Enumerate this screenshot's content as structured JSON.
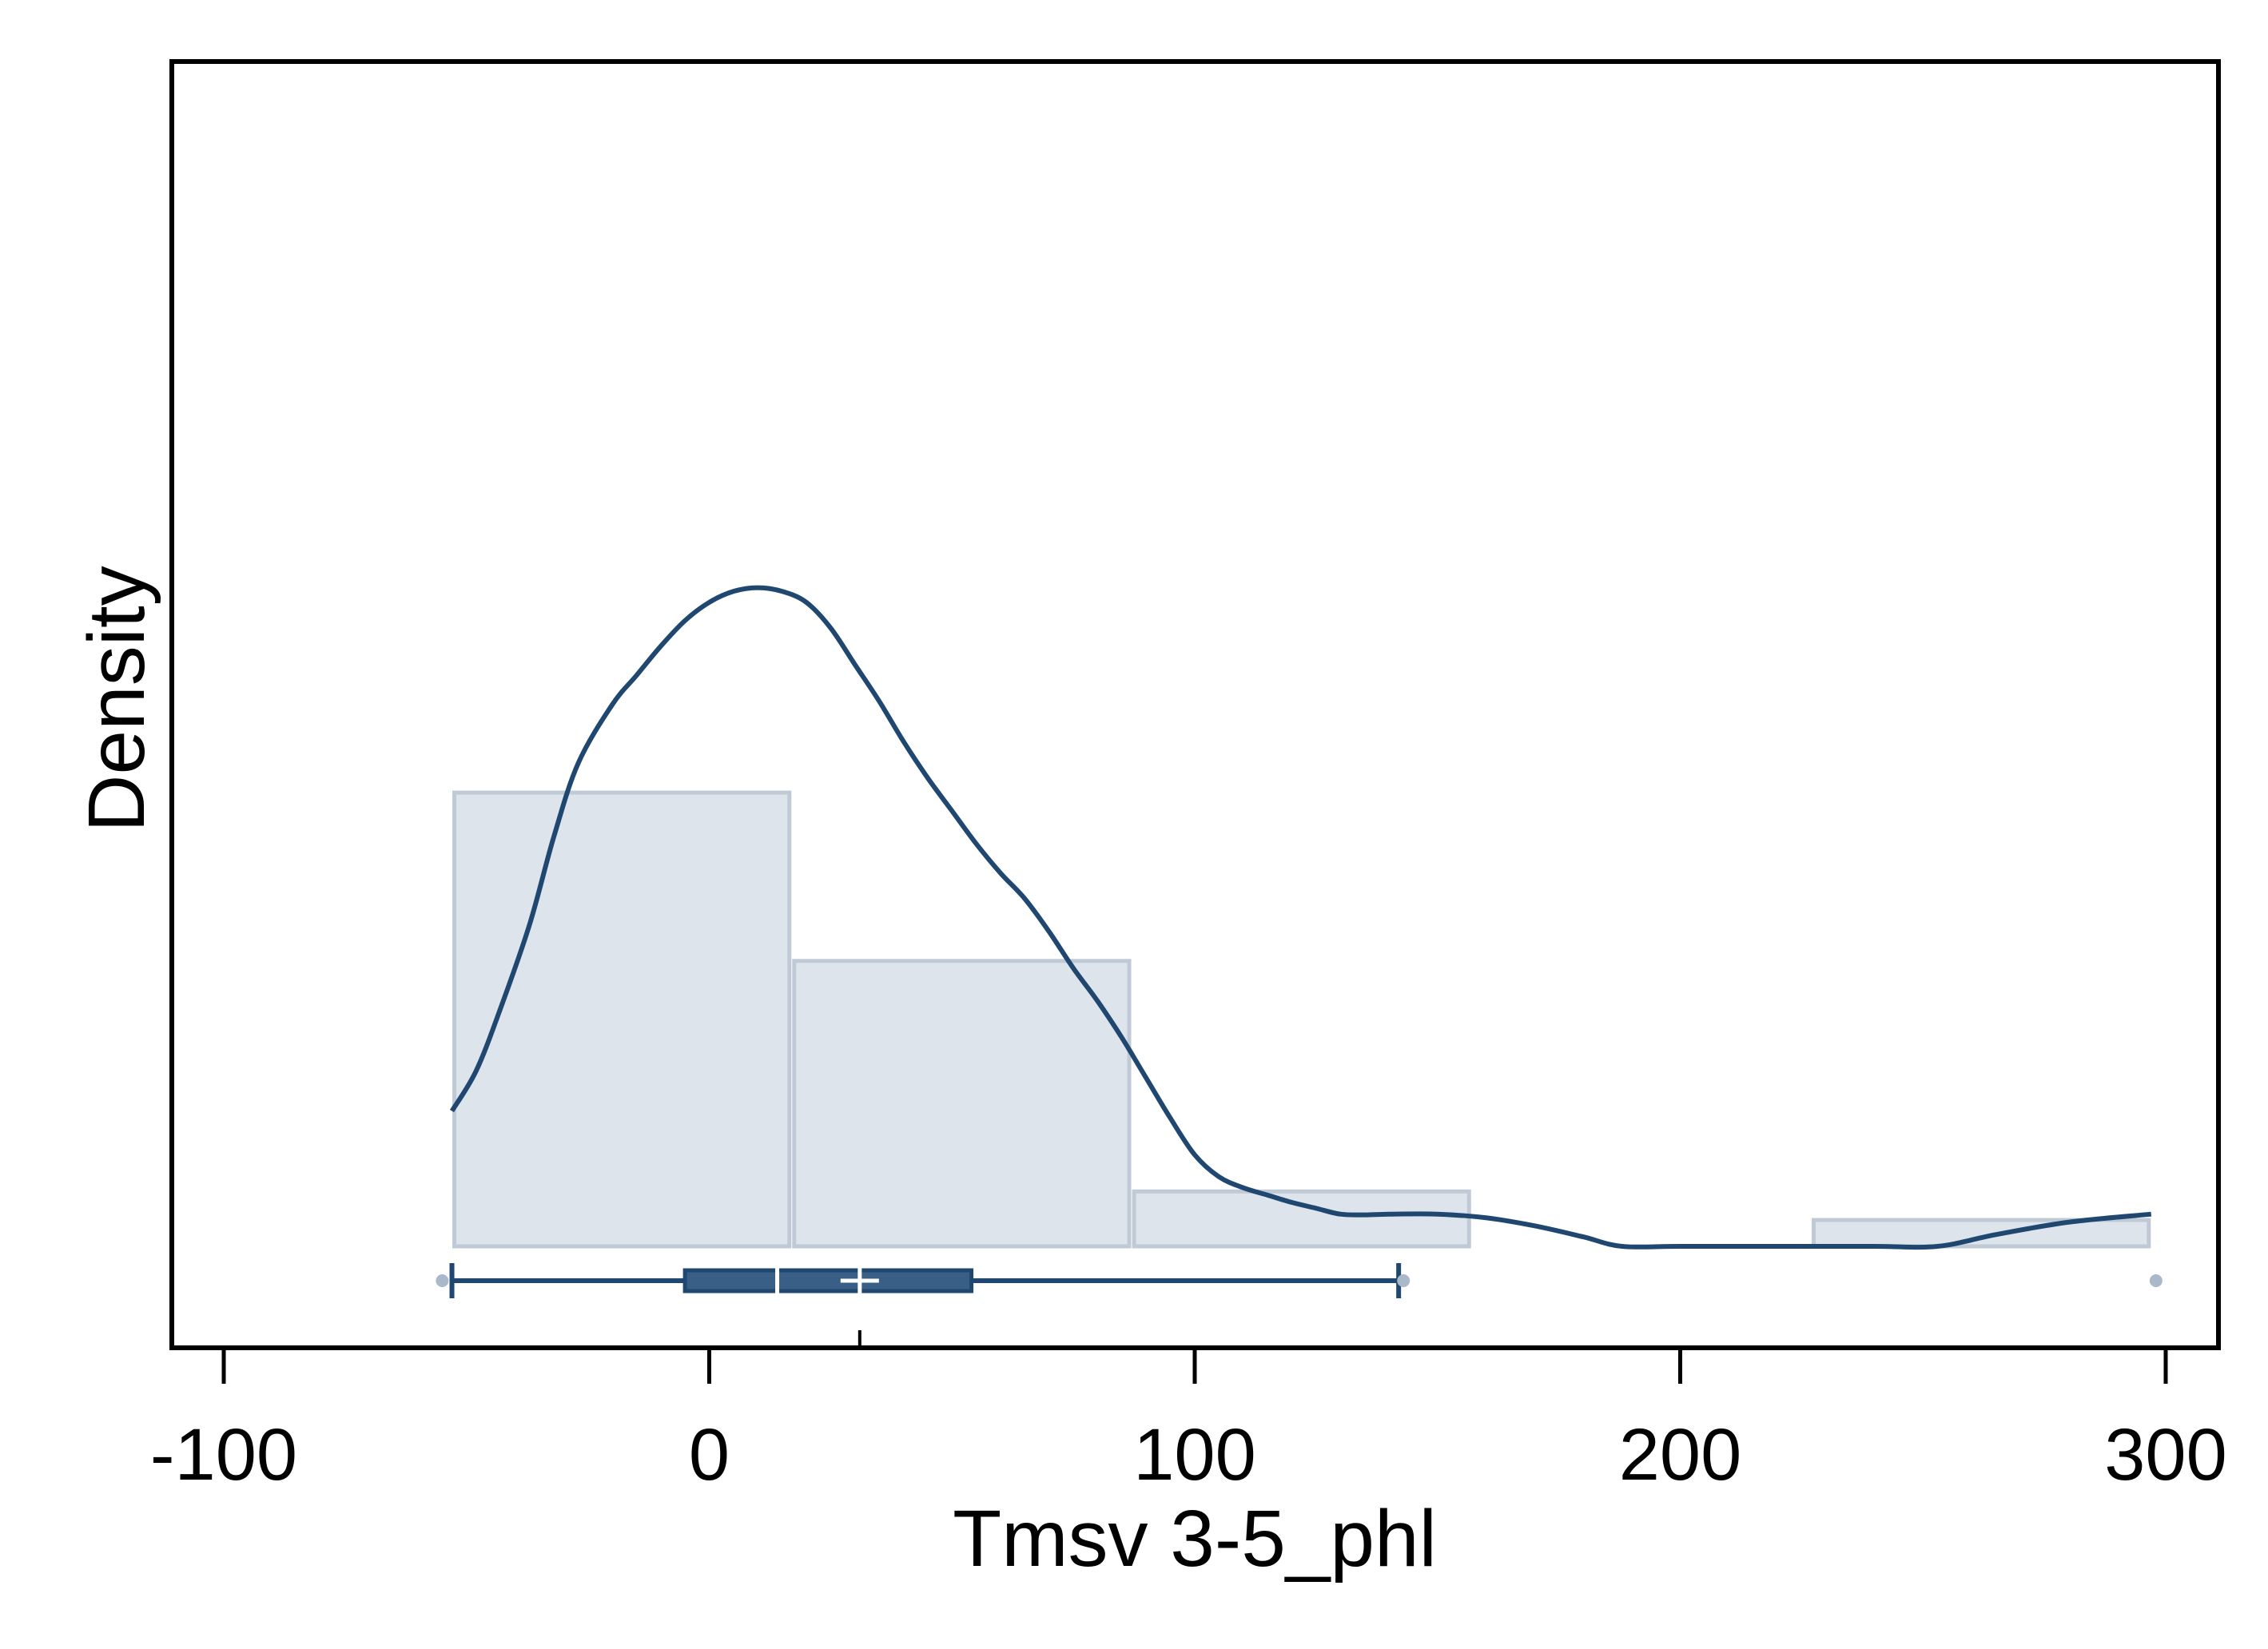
{
  "chart_data": {
    "type": "histogram",
    "title": "",
    "xlabel": "Tmsv 3-5_phl",
    "ylabel": "Density",
    "xlim": [
      -110,
      311
    ],
    "x_ticks": [
      -100,
      0,
      100,
      200,
      300
    ],
    "x_tick_labels": [
      "-100",
      "0",
      "100",
      "200",
      "300"
    ],
    "y_tick_labels": [],
    "grid": false,
    "legend": "none",
    "colors": {
      "bar_fill": "#dde4ec",
      "bar_edge": "#bfcad6",
      "curve": "#1f4770",
      "box_fill": "#3a5f86",
      "outlier": "#a9b9c9"
    },
    "histogram": {
      "bins": [
        {
          "x0": -53,
          "x1": 17,
          "density": 0.0062
        },
        {
          "x0": 17,
          "x1": 87,
          "density": 0.0039
        },
        {
          "x0": 87,
          "x1": 157,
          "density": 0.00075
        },
        {
          "x0": 157,
          "x1": 227,
          "density": 0.0
        },
        {
          "x0": 227,
          "x1": 297,
          "density": 0.00036
        }
      ]
    },
    "density_curve": {
      "x": [
        -53,
        -48,
        -43,
        -37,
        -32,
        -27,
        -20,
        -15,
        -10,
        -5,
        0,
        5,
        10,
        15,
        20,
        25,
        30,
        35,
        40,
        45,
        50,
        55,
        60,
        65,
        70,
        75,
        80,
        85,
        90,
        95,
        100,
        105,
        110,
        115,
        120,
        125,
        130,
        135,
        140,
        150,
        160,
        170,
        180,
        188,
        200,
        220,
        240,
        253,
        265,
        280,
        297
      ],
      "y": [
        0.00185,
        0.0024,
        0.00325,
        0.0044,
        0.0056,
        0.0066,
        0.0074,
        0.0078,
        0.0082,
        0.00855,
        0.0088,
        0.00895,
        0.009,
        0.00895,
        0.0088,
        0.00845,
        0.00795,
        0.00745,
        0.0069,
        0.0064,
        0.00595,
        0.0055,
        0.0051,
        0.00475,
        0.0043,
        0.0038,
        0.00335,
        0.00285,
        0.0023,
        0.00175,
        0.00125,
        0.00095,
        0.0008,
        0.0007,
        0.0006,
        0.00052,
        0.00044,
        0.00043,
        0.00044,
        0.00044,
        0.00039,
        0.00028,
        0.00013,
        0.0,
        0.0,
        0.0,
        0.0,
        0.0,
        0.00016,
        0.00033,
        0.00044
      ]
    },
    "ylim": [
      -0.0006,
      0.0095
    ],
    "boxplot": {
      "whisker_low": -53,
      "q1": -5,
      "median": 14,
      "mean": 31,
      "q3": 54,
      "whisker_high": 142,
      "outliers": [
        -55,
        143,
        298
      ]
    }
  }
}
